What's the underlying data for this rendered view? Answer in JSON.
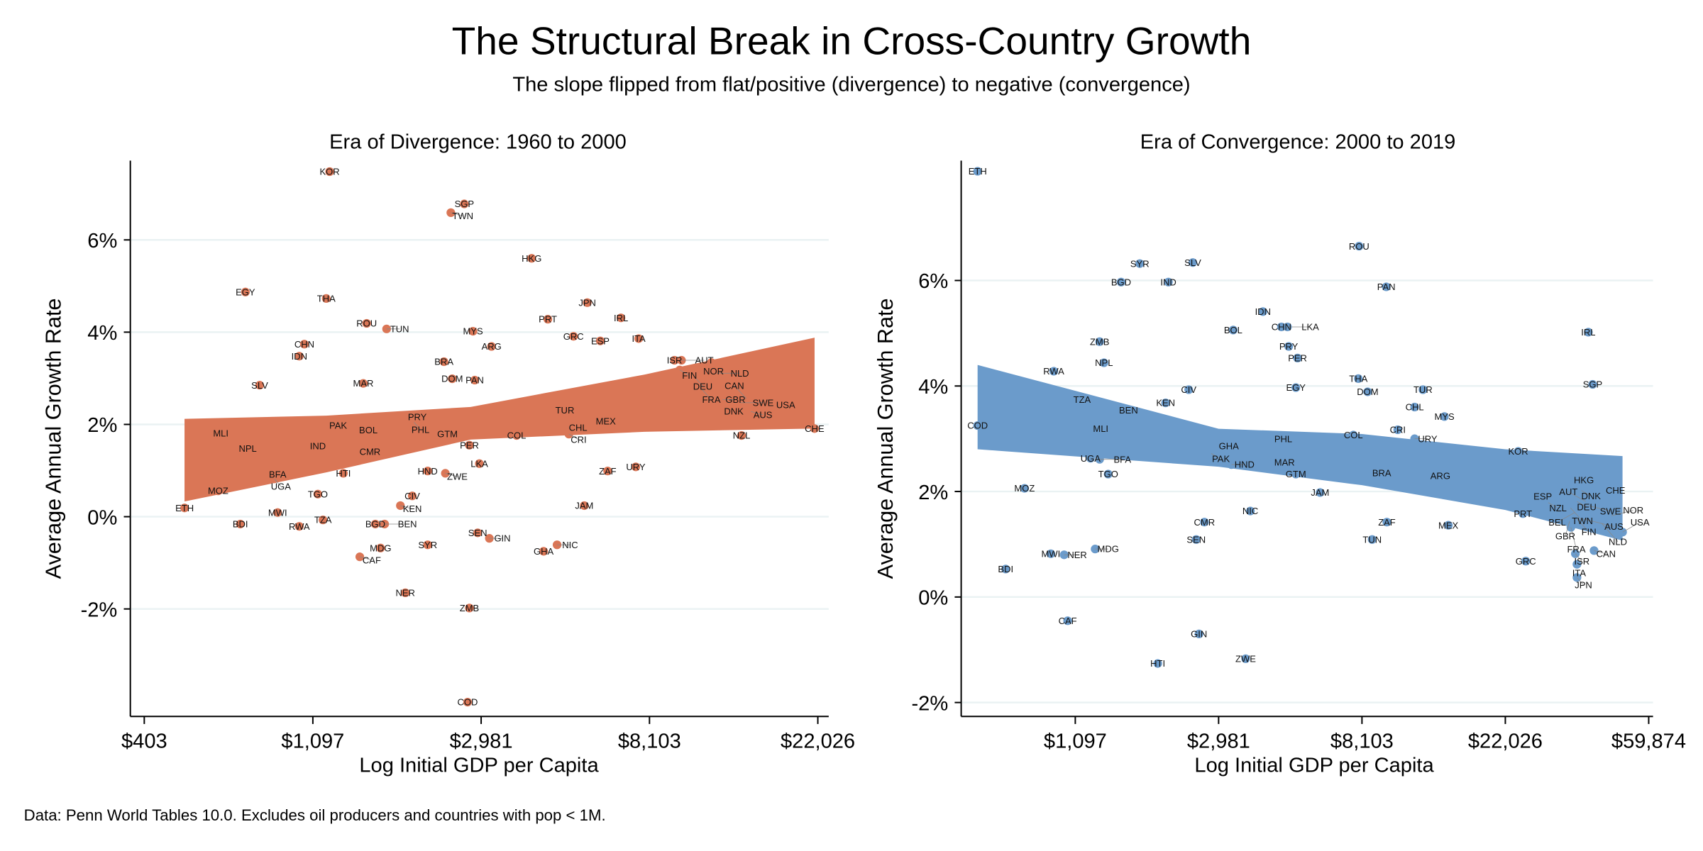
{
  "title": "The Structural Break in Cross-Country Growth",
  "subtitle": "The slope flipped from flat/positive (divergence) to negative (convergence)",
  "footnote": "Data: Penn World Tables 10.0. Excludes oil producers and countries with pop < 1M.",
  "colors": {
    "divergence": "#da7656",
    "convergence": "#6b9bcb",
    "grid": "#eaf2f3"
  },
  "chart_data": [
    {
      "type": "scatter",
      "title": "Era of Divergence: 1960 to 2000",
      "xlabel": "Log Initial GDP per Capita",
      "ylabel": "Average Annual Growth Rate",
      "x_scale": "log",
      "xticks": [
        403,
        1097,
        2981,
        8103,
        22026
      ],
      "xtick_labels": [
        "$403",
        "$1,097",
        "$2,981",
        "$8,103",
        "$22,026"
      ],
      "yticks": [
        6,
        4,
        2,
        0,
        -2
      ],
      "ytick_labels": [
        "6%",
        "4%",
        "2%",
        "0%",
        "-2%"
      ],
      "xlim": [
        403,
        25000
      ],
      "ylim": [
        -4.3,
        7.8
      ],
      "grid": true,
      "color": "#da7656",
      "points_fields": [
        "country",
        "initial_gdp_per_capita",
        "growth_pct"
      ],
      "points": [
        [
          "KOR",
          1212,
          7.48
        ],
        [
          "SGP",
          2697,
          6.78
        ],
        [
          "TWN",
          2490,
          6.59
        ],
        [
          "HKG",
          4024,
          5.6
        ],
        [
          "EGY",
          735,
          4.87
        ],
        [
          "THA",
          1188,
          4.73
        ],
        [
          "ROU",
          1510,
          4.19
        ],
        [
          "TUN",
          1700,
          4.07
        ],
        [
          "MYS",
          2840,
          4.02
        ],
        [
          "ARG",
          3170,
          3.69
        ],
        [
          "CHN",
          1043,
          3.74
        ],
        [
          "IDN",
          1012,
          3.48
        ],
        [
          "BRA",
          2390,
          3.36
        ],
        [
          "DOM",
          2510,
          2.99
        ],
        [
          "PAN",
          2870,
          2.96
        ],
        [
          "MAR",
          1480,
          2.89
        ],
        [
          "SLV",
          800,
          2.85
        ],
        [
          "JPN",
          5600,
          4.64
        ],
        [
          "PRT",
          4430,
          4.28
        ],
        [
          "IRL",
          6840,
          4.31
        ],
        [
          "GRC",
          5160,
          3.91
        ],
        [
          "ESP",
          6050,
          3.81
        ],
        [
          "ITA",
          7600,
          3.86
        ],
        [
          "ISR",
          9400,
          3.39
        ],
        [
          "AUT",
          9800,
          3.39
        ],
        [
          "NOR",
          11700,
          3.34
        ],
        [
          "FIN",
          9700,
          3.18
        ],
        [
          "NLD",
          12100,
          3.11
        ],
        [
          "DEU",
          10700,
          2.99
        ],
        [
          "FRA",
          10900,
          2.82
        ],
        [
          "GBR",
          12500,
          2.54
        ],
        [
          "DNK",
          13200,
          2.47
        ],
        [
          "SWE",
          13900,
          2.47
        ],
        [
          "CAN",
          14400,
          2.56
        ],
        [
          "AUS",
          14800,
          2.28
        ],
        [
          "USA",
          18200,
          2.42
        ],
        [
          "CHE",
          21600,
          1.91
        ],
        [
          "NZL",
          14000,
          1.76
        ],
        [
          "TUR",
          4900,
          2.31
        ],
        [
          "MEX",
          6250,
          2.07
        ],
        [
          "CHL",
          5300,
          1.93
        ],
        [
          "CRI",
          5020,
          1.79
        ],
        [
          "COL",
          3680,
          1.76
        ],
        [
          "ZAF",
          6320,
          0.99
        ],
        [
          "URY",
          7470,
          1.08
        ],
        [
          "PRY",
          2040,
          2.16
        ],
        [
          "PHL",
          2000,
          2.05
        ],
        [
          "GTM",
          2440,
          1.79
        ],
        [
          "PER",
          2780,
          1.55
        ],
        [
          "LKA",
          2950,
          1.15
        ],
        [
          "PAK",
          1275,
          1.98
        ],
        [
          "BOL",
          1525,
          1.88
        ],
        [
          "MLI",
          635,
          1.81
        ],
        [
          "NPL",
          745,
          1.48
        ],
        [
          "IND",
          1130,
          1.53
        ],
        [
          "CMR",
          1540,
          1.41
        ],
        [
          "HTI",
          1315,
          0.94
        ],
        [
          "HND",
          2170,
          0.99
        ],
        [
          "ZWE",
          2410,
          0.94
        ],
        [
          "BFA",
          890,
          0.92
        ],
        [
          "UGA",
          873,
          0.82
        ],
        [
          "MOZ",
          625,
          0.56
        ],
        [
          "TGO",
          1130,
          0.49
        ],
        [
          "CIV",
          1980,
          0.45
        ],
        [
          "KEN",
          1845,
          0.24
        ],
        [
          "ETH",
          512,
          0.19
        ],
        [
          "MWI",
          890,
          0.09
        ],
        [
          "BDI",
          713,
          -0.16
        ],
        [
          "RWA",
          1012,
          -0.21
        ],
        [
          "TZA",
          1165,
          -0.07
        ],
        [
          "BGD",
          1590,
          -0.16
        ],
        [
          "BEN",
          1680,
          -0.16
        ],
        [
          "SEN",
          2920,
          -0.35
        ],
        [
          "GIN",
          3130,
          -0.47
        ],
        [
          "MDG",
          1640,
          -0.68
        ],
        [
          "SYR",
          2170,
          -0.61
        ],
        [
          "CAF",
          1450,
          -0.87
        ],
        [
          "GHA",
          4320,
          -0.75
        ],
        [
          "NIC",
          4680,
          -0.61
        ],
        [
          "JAM",
          5500,
          0.24
        ],
        [
          "NER",
          1900,
          -1.65
        ],
        [
          "ZMB",
          2780,
          -1.98
        ],
        [
          "COD",
          2750,
          -4.02
        ]
      ],
      "ci_band": {
        "x": [
          512,
          1188,
          2800,
          7860,
          21600
        ],
        "lower": [
          0.33,
          0.96,
          1.67,
          1.84,
          1.91
        ],
        "upper": [
          2.12,
          2.19,
          2.38,
          3.08,
          3.88
        ]
      }
    },
    {
      "type": "scatter",
      "title": "Era of Convergence: 2000 to 2019",
      "xlabel": "Log Initial GDP per Capita",
      "ylabel": "Average Annual Growth Rate",
      "x_scale": "log",
      "xticks": [
        1097,
        2981,
        8103,
        22026,
        59874
      ],
      "xtick_labels": [
        "$1,097",
        "$2,981",
        "$8,103",
        "$22,026",
        "$59,874"
      ],
      "yticks": [
        6,
        4,
        2,
        0,
        -2
      ],
      "ytick_labels": [
        "6%",
        "4%",
        "2%",
        "0%",
        "-2%"
      ],
      "xlim": [
        480,
        60000
      ],
      "ylim": [
        -2.3,
        8.3
      ],
      "grid": true,
      "color": "#6b9bcb",
      "points_fields": [
        "country",
        "initial_gdp_per_capita",
        "growth_pct"
      ],
      "points": [
        [
          "ETH",
          555,
          8.07
        ],
        [
          "ROU",
          7940,
          6.65
        ],
        [
          "SYR",
          1720,
          6.32
        ],
        [
          "SLV",
          2490,
          6.34
        ],
        [
          "BGD",
          1510,
          5.97
        ],
        [
          "IND",
          2100,
          5.97
        ],
        [
          "PAN",
          9600,
          5.88
        ],
        [
          "IDN",
          4060,
          5.41
        ],
        [
          "BOL",
          3300,
          5.06
        ],
        [
          "CHN",
          4620,
          5.12
        ],
        [
          "LKA",
          4820,
          5.12
        ],
        [
          "PRY",
          4860,
          4.75
        ],
        [
          "PER",
          5170,
          4.53
        ],
        [
          "ZMB",
          1300,
          4.84
        ],
        [
          "NPL",
          1340,
          4.44
        ],
        [
          "RWA",
          944,
          4.28
        ],
        [
          "THA",
          7900,
          4.14
        ],
        [
          "DOM",
          8430,
          3.89
        ],
        [
          "EGY",
          5110,
          3.97
        ],
        [
          "TUR",
          12400,
          3.93
        ],
        [
          "CHL",
          11700,
          3.6
        ],
        [
          "MYS",
          14400,
          3.42
        ],
        [
          "CRI",
          10400,
          3.17
        ],
        [
          "URY",
          11700,
          3.0
        ],
        [
          "COL",
          7630,
          3.07
        ],
        [
          "CIV",
          2420,
          3.93
        ],
        [
          "KEN",
          2060,
          3.68
        ],
        [
          "TZA",
          1150,
          3.74
        ],
        [
          "BEN",
          1590,
          3.54
        ],
        [
          "COD",
          555,
          3.25
        ],
        [
          "MLI",
          1310,
          3.19
        ],
        [
          "PHL",
          4680,
          3.0
        ],
        [
          "GHA",
          3200,
          2.86
        ],
        [
          "PAK",
          2830,
          2.72
        ],
        [
          "HND",
          3260,
          2.51
        ],
        [
          "MAR",
          4720,
          2.55
        ],
        [
          "GTM",
          5110,
          2.33
        ],
        [
          "BRA",
          9300,
          2.35
        ],
        [
          "ARG",
          14000,
          2.3
        ],
        [
          "KOR",
          24100,
          2.76
        ],
        [
          "UGA",
          1220,
          2.63
        ],
        [
          "BFA",
          1300,
          2.61
        ],
        [
          "TGO",
          1380,
          2.33
        ],
        [
          "MOZ",
          770,
          2.06
        ],
        [
          "JAM",
          6050,
          1.98
        ],
        [
          "NIC",
          3720,
          1.63
        ],
        [
          "CMR",
          2700,
          1.42
        ],
        [
          "ZAF",
          9640,
          1.42
        ],
        [
          "MEX",
          14800,
          1.36
        ],
        [
          "TUN",
          8700,
          1.09
        ],
        [
          "SEN",
          2550,
          1.09
        ],
        [
          "MWI",
          925,
          0.82
        ],
        [
          "NER",
          1015,
          0.8
        ],
        [
          "MDG",
          1260,
          0.91
        ],
        [
          "BDI",
          675,
          0.53
        ],
        [
          "CAF",
          1040,
          -0.45
        ],
        [
          "GIN",
          2600,
          -0.7
        ],
        [
          "HTI",
          1950,
          -1.26
        ],
        [
          "ZWE",
          3600,
          -1.17
        ],
        [
          "IRL",
          39300,
          5.02
        ],
        [
          "SGP",
          40500,
          4.03
        ],
        [
          "HKG",
          38100,
          2.22
        ],
        [
          "CHE",
          47500,
          2.02
        ],
        [
          "DNK",
          37400,
          2.02
        ],
        [
          "ESP",
          28600,
          1.91
        ],
        [
          "NZL",
          29700,
          1.79
        ],
        [
          "DEU",
          36300,
          1.81
        ],
        [
          "AUT",
          38600,
          1.81
        ],
        [
          "SWE",
          39400,
          1.73
        ],
        [
          "TWN",
          34700,
          1.69
        ],
        [
          "BEL",
          35700,
          1.6
        ],
        [
          "FIN",
          36300,
          1.48
        ],
        [
          "AUS",
          38000,
          1.48
        ],
        [
          "NOR",
          46200,
          1.54
        ],
        [
          "GBR",
          34500,
          1.44
        ],
        [
          "FRA",
          34800,
          1.32
        ],
        [
          "NLD",
          43100,
          1.4
        ],
        [
          "USA",
          49900,
          1.23
        ],
        [
          "PRT",
          24900,
          1.58
        ],
        [
          "ISR",
          35900,
          0.82
        ],
        [
          "CAN",
          40900,
          0.88
        ],
        [
          "GRC",
          25400,
          0.68
        ],
        [
          "ITA",
          36300,
          0.62
        ],
        [
          "JPN",
          36300,
          0.37
        ]
      ],
      "ci_band": {
        "x": [
          555,
          2981,
          8103,
          22026,
          49900
        ],
        "lower": [
          2.8,
          2.47,
          2.12,
          1.65,
          1.07
        ],
        "upper": [
          4.4,
          3.19,
          3.09,
          2.8,
          2.67
        ]
      }
    }
  ]
}
